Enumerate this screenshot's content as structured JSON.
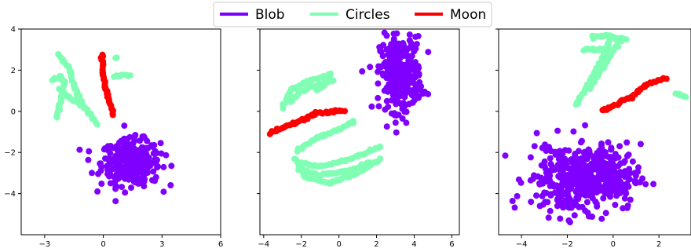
{
  "colors": {
    "Blob": "#7f00ff",
    "Circles": "#80ffb4",
    "Moon": "#ff0000"
  },
  "legend": {
    "placement": "top-center",
    "entries": [
      "Blob",
      "Circles",
      "Moon"
    ]
  },
  "chart_data": [
    {
      "type": "scatter",
      "title": "",
      "xlabel": "",
      "ylabel": "",
      "xlim": [
        -4.2,
        6
      ],
      "ylim": [
        -6,
        4
      ],
      "xticks": [
        "−3",
        "0",
        "3",
        "6"
      ],
      "yticks": [
        "4",
        "2",
        "0",
        "−2",
        "−4"
      ],
      "series": [
        {
          "name": "Blob",
          "blobs": [
            {
              "center": [
                1.4,
                -2.5
              ],
              "spread": [
                0.75,
                0.55
              ],
              "count": 320
            }
          ]
        },
        {
          "name": "Circles",
          "strokes": [
            [
              [
                -2.3,
                2.75
              ],
              [
                -1.8,
                2.2
              ],
              [
                -1.4,
                1.0
              ],
              [
                -0.9,
                0.1
              ],
              [
                -0.3,
                -0.6
              ]
            ],
            [
              [
                -2.6,
                1.5
              ],
              [
                -2.2,
                1.7
              ],
              [
                -2.0,
                1.4
              ],
              [
                -2.1,
                0.8
              ],
              [
                -2.4,
                -0.3
              ]
            ],
            [
              [
                -2.3,
                1.1
              ],
              [
                -1.8,
                0.7
              ],
              [
                -1.3,
                0.4
              ],
              [
                -1.0,
                0.2
              ]
            ],
            [
              [
                0.6,
                1.72
              ],
              [
                0.9,
                1.74
              ],
              [
                1.4,
                1.76
              ]
            ],
            [
              [
                0.6,
                2.6
              ],
              [
                0.65,
                2.62
              ]
            ]
          ]
        },
        {
          "name": "Moon",
          "strokes": [
            [
              [
                -0.05,
                2.75
              ],
              [
                -0.05,
                1.9
              ],
              [
                0.1,
                1.2
              ],
              [
                0.3,
                0.5
              ],
              [
                0.55,
                -0.15
              ]
            ]
          ]
        }
      ]
    },
    {
      "type": "scatter",
      "title": "",
      "xlabel": "",
      "ylabel": "",
      "xlim": [
        -4.2,
        6.4
      ],
      "ylim": [
        -6,
        4
      ],
      "xticks": [
        "−4",
        "−2",
        "0",
        "2",
        "4",
        "6"
      ],
      "yticks": [],
      "series": [
        {
          "name": "Blob",
          "blobs": [
            {
              "center": [
                3.3,
                1.8
              ],
              "spread": [
                0.55,
                0.9
              ],
              "count": 300
            }
          ]
        },
        {
          "name": "Circles",
          "strokes": [
            [
              [
                -3.0,
                0.2
              ],
              [
                -2.5,
                1.1
              ],
              [
                -1.5,
                1.5
              ],
              [
                -0.4,
                1.8
              ]
            ],
            [
              [
                -2.6,
                0.5
              ],
              [
                -2.0,
                1.0
              ],
              [
                -1.0,
                1.3
              ],
              [
                -0.3,
                1.5
              ]
            ],
            [
              [
                -1.2,
                1.0
              ],
              [
                -0.8,
                1.3
              ]
            ],
            [
              [
                -2.2,
                -1.9
              ],
              [
                -1.2,
                -1.3
              ],
              [
                0.0,
                -0.9
              ],
              [
                0.8,
                -0.5
              ]
            ],
            [
              [
                -2.3,
                -2.3
              ],
              [
                -1.8,
                -3.2
              ],
              [
                -0.5,
                -3.5
              ],
              [
                1.0,
                -3.0
              ],
              [
                2.2,
                -2.3
              ]
            ],
            [
              [
                -2.0,
                -2.5
              ],
              [
                -1.0,
                -2.7
              ],
              [
                0.3,
                -2.4
              ],
              [
                1.2,
                -2.1
              ],
              [
                2.2,
                -1.7
              ]
            ],
            [
              [
                -2.1,
                -2.8
              ],
              [
                -1.0,
                -3.1
              ],
              [
                0.5,
                -2.9
              ],
              [
                1.6,
                -2.5
              ]
            ]
          ]
        },
        {
          "name": "Moon",
          "strokes": [
            [
              [
                -3.7,
                -1.05
              ],
              [
                -2.4,
                -0.6
              ],
              [
                -1.2,
                -0.1
              ],
              [
                0.0,
                0.02
              ],
              [
                0.3,
                0.02
              ]
            ]
          ]
        }
      ]
    },
    {
      "type": "scatter",
      "title": "",
      "xlabel": "",
      "ylabel": "",
      "xlim": [
        -5,
        3.4
      ],
      "ylim": [
        -6,
        4
      ],
      "xticks": [
        "−4",
        "−2",
        "0",
        "2"
      ],
      "yticks": [],
      "series": [
        {
          "name": "Blob",
          "blobs": [
            {
              "center": [
                -2.0,
                -3.3
              ],
              "spread": [
                0.9,
                0.9
              ],
              "count": 230
            },
            {
              "center": [
                -0.6,
                -3.2
              ],
              "spread": [
                0.9,
                0.8
              ],
              "count": 230
            }
          ]
        },
        {
          "name": "Circles",
          "strokes": [
            [
              [
                -1.3,
                3.0
              ],
              [
                -0.5,
                3.0
              ],
              [
                0.0,
                2.95
              ]
            ],
            [
              [
                -0.9,
                3.6
              ],
              [
                -0.3,
                3.7
              ],
              [
                0.3,
                3.5
              ],
              [
                0.6,
                3.5
              ]
            ],
            [
              [
                -0.1,
                3.6
              ],
              [
                -0.4,
                2.8
              ],
              [
                -0.8,
                1.9
              ],
              [
                -1.3,
                0.9
              ],
              [
                -1.6,
                0.3
              ]
            ],
            [
              [
                0.4,
                3.6
              ],
              [
                -0.2,
                2.6
              ],
              [
                -0.7,
                1.7
              ],
              [
                -1.0,
                1.1
              ]
            ],
            [
              [
                2.7,
                0.9
              ],
              [
                3.2,
                0.7
              ]
            ]
          ]
        },
        {
          "name": "Moon",
          "strokes": [
            [
              [
                -0.5,
                0.05
              ],
              [
                0.3,
                0.4
              ],
              [
                0.8,
                0.7
              ],
              [
                1.5,
                1.3
              ],
              [
                2.3,
                1.62
              ]
            ]
          ]
        }
      ]
    }
  ]
}
